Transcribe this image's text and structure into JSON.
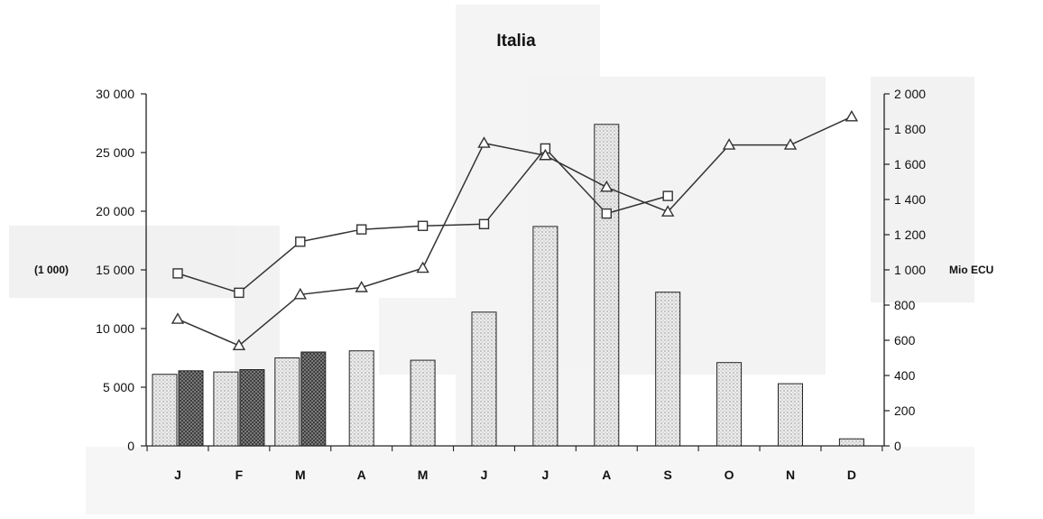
{
  "chart_data": {
    "type": "bar",
    "title": "Italia",
    "categories": [
      "J",
      "F",
      "M",
      "A",
      "M",
      "J",
      "J",
      "A",
      "S",
      "O",
      "N",
      "D"
    ],
    "left_axis": {
      "unit_label": "(1 000)",
      "range": [
        0,
        30000
      ],
      "ticks": [
        0,
        5000,
        10000,
        15000,
        20000,
        25000,
        30000
      ],
      "tick_labels": [
        "0",
        "5 000",
        "10 000",
        "15 000",
        "20 000",
        "25 000",
        "30 000"
      ]
    },
    "right_axis": {
      "unit_label": "Mio ECU",
      "range": [
        0,
        2000
      ],
      "ticks": [
        0,
        200,
        400,
        600,
        800,
        1000,
        1200,
        1400,
        1600,
        1800,
        2000
      ],
      "tick_labels": [
        "0",
        "200",
        "400",
        "600",
        "800",
        "1 000",
        "1 200",
        "1 400",
        "1 600",
        "1 800",
        "2 000"
      ]
    },
    "series": [
      {
        "kind": "bar",
        "pattern": "light-dotted",
        "axis": "left",
        "values": [
          6100,
          6300,
          7500,
          8100,
          7300,
          11400,
          18700,
          27400,
          13100,
          7100,
          5300,
          600
        ]
      },
      {
        "kind": "bar",
        "pattern": "dark-crosshatch",
        "axis": "left",
        "values": [
          6400,
          6500,
          8000,
          null,
          null,
          null,
          null,
          null,
          null,
          null,
          null,
          null
        ]
      },
      {
        "kind": "line",
        "marker": "square",
        "axis": "right",
        "values": [
          980,
          870,
          1160,
          1230,
          1250,
          1260,
          1690,
          1320,
          1420,
          null,
          null,
          null
        ]
      },
      {
        "kind": "line",
        "marker": "triangle",
        "axis": "right",
        "values": [
          720,
          570,
          860,
          900,
          1010,
          1720,
          1650,
          1470,
          1330,
          1710,
          1710,
          1870
        ]
      }
    ],
    "grid": false,
    "legend": "none",
    "colors": {
      "axis": "#222222",
      "bar_light": "#e6e6e6",
      "bar_dark": "#666666",
      "line": "#333333",
      "panel_shade": "#f2f2f2"
    }
  }
}
